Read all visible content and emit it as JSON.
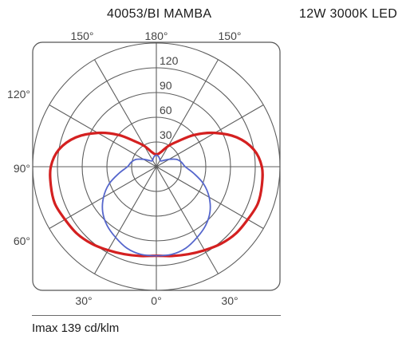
{
  "header": {
    "title": "40053/BI  MAMBA",
    "spec": "12W  3000K  LED"
  },
  "footer": {
    "imax": "Imax 139 cd/klm"
  },
  "colors": {
    "c0_c180": "#d42020",
    "c90_c270": "#5566cc",
    "grid": "#5d5d5d"
  },
  "chart_data": {
    "type": "polar",
    "radial_max": 150,
    "radial_ticks": [
      30,
      60,
      90,
      120
    ],
    "radial_tick_labels": [
      "30",
      "60",
      "90",
      "120"
    ],
    "angle_labels": {
      "top": [
        "150°",
        "180°",
        "150°"
      ],
      "left": [
        "120°",
        "90°",
        "60°"
      ],
      "bottom": [
        "30°",
        "0°",
        "30°"
      ]
    },
    "series": [
      {
        "color": "#d42020",
        "angles": [
          0,
          10,
          20,
          30,
          40,
          50,
          60,
          70,
          80,
          90,
          100,
          110,
          120,
          130,
          140,
          150,
          160,
          170,
          180
        ],
        "values": [
          108,
          110,
          113,
          117,
          122,
          126,
          128,
          131,
          130,
          128,
          120,
          104,
          82,
          60,
          40,
          29,
          20,
          16,
          15
        ]
      },
      {
        "color": "#5566cc",
        "angles": [
          0,
          10,
          20,
          30,
          40,
          50,
          60,
          70,
          80,
          90,
          100,
          110,
          120,
          130,
          140,
          150,
          160,
          170,
          180
        ],
        "values": [
          108,
          108,
          105,
          99,
          93,
          85,
          74,
          61,
          46,
          35,
          31,
          26,
          18,
          12,
          9,
          9,
          11,
          13,
          14
        ]
      }
    ]
  }
}
